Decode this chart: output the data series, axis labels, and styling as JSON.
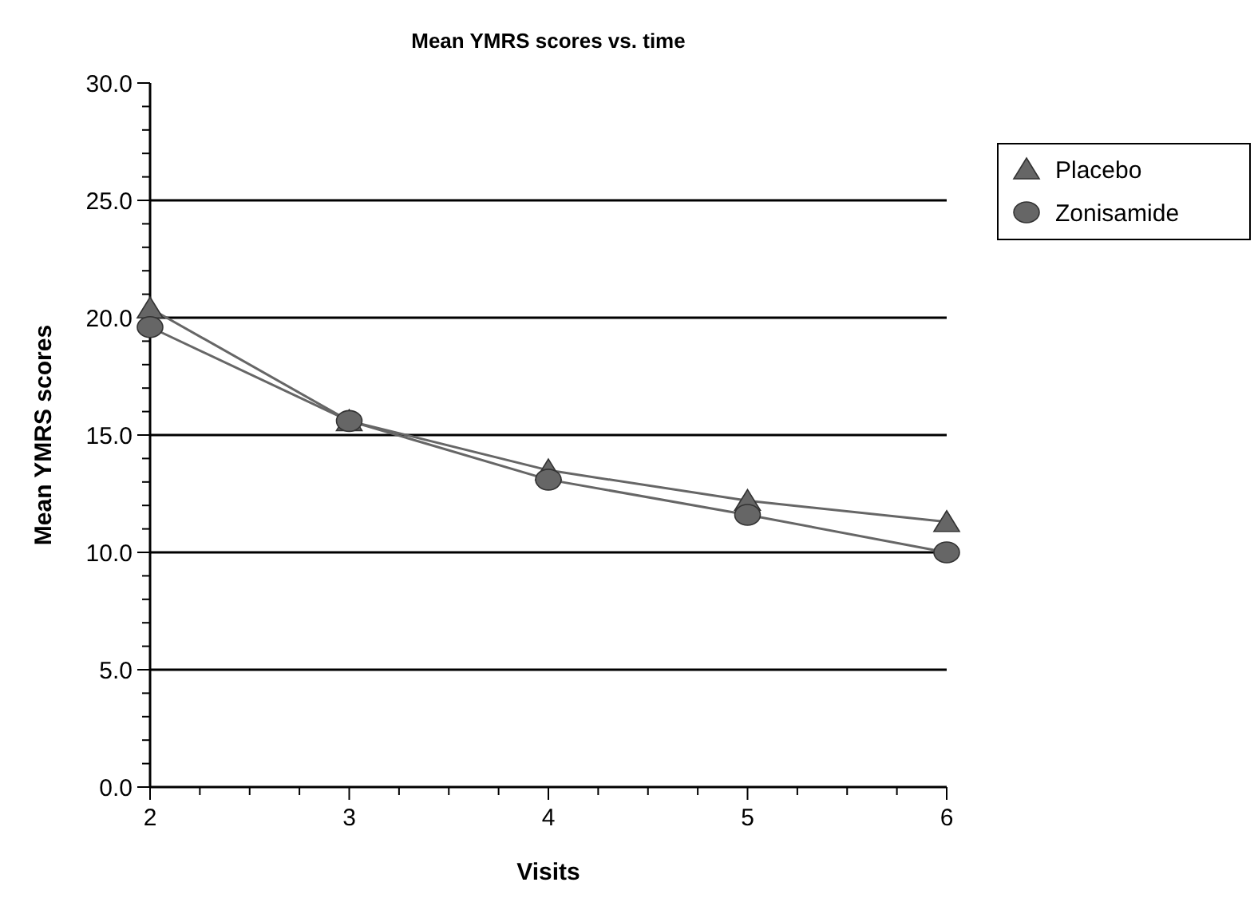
{
  "chart_data": {
    "type": "line",
    "title": "Mean YMRS scores vs. time",
    "xlabel": "Visits",
    "ylabel": "Mean YMRS scores",
    "x": [
      2,
      3,
      4,
      5,
      6
    ],
    "series": [
      {
        "name": "Placebo",
        "color": "#666666",
        "marker": "triangle",
        "values": [
          20.4,
          15.6,
          13.5,
          12.2,
          11.3
        ]
      },
      {
        "name": "Zonisamide",
        "color": "#666666",
        "marker": "circle",
        "values": [
          19.6,
          15.6,
          13.1,
          11.6,
          10.0
        ]
      }
    ],
    "xlim": [
      2,
      6
    ],
    "xticks": [
      2,
      {
        "value": 2.25,
        "label": null
      },
      {
        "value": 2.5,
        "label": null
      },
      {
        "value": 2.75,
        "label": null
      },
      3,
      {
        "value": 3.25,
        "label": null
      },
      {
        "value": 3.5,
        "label": null
      },
      {
        "value": 3.75,
        "label": null
      },
      4,
      {
        "value": 4.25,
        "label": null
      },
      {
        "value": 4.5,
        "label": null
      },
      {
        "value": 4.75,
        "label": null
      },
      5,
      {
        "value": 5.25,
        "label": null
      },
      {
        "value": 5.5,
        "label": null
      },
      {
        "value": 5.75,
        "label": null
      },
      6
    ],
    "ylim": [
      0,
      30
    ],
    "yticks": [
      {
        "value": 0,
        "label": "0.0"
      },
      {
        "value": 1,
        "label": null
      },
      {
        "value": 2,
        "label": null
      },
      {
        "value": 3,
        "label": null
      },
      {
        "value": 4,
        "label": null
      },
      {
        "value": 5,
        "label": "5.0"
      },
      {
        "value": 6,
        "label": null
      },
      {
        "value": 7,
        "label": null
      },
      {
        "value": 8,
        "label": null
      },
      {
        "value": 9,
        "label": null
      },
      {
        "value": 10,
        "label": "10.0"
      },
      {
        "value": 11,
        "label": null
      },
      {
        "value": 12,
        "label": null
      },
      {
        "value": 13,
        "label": null
      },
      {
        "value": 14,
        "label": null
      },
      {
        "value": 15,
        "label": "15.0"
      },
      {
        "value": 16,
        "label": null
      },
      {
        "value": 17,
        "label": null
      },
      {
        "value": 18,
        "label": null
      },
      {
        "value": 19,
        "label": null
      },
      {
        "value": 20,
        "label": "20.0"
      },
      {
        "value": 21,
        "label": null
      },
      {
        "value": 22,
        "label": null
      },
      {
        "value": 23,
        "label": null
      },
      {
        "value": 24,
        "label": null
      },
      {
        "value": 25,
        "label": "25.0"
      },
      {
        "value": 26,
        "label": null
      },
      {
        "value": 27,
        "label": null
      },
      {
        "value": 28,
        "label": null
      },
      {
        "value": 29,
        "label": null
      },
      {
        "value": 30,
        "label": "30.0"
      }
    ],
    "grid": "y",
    "legend": "right",
    "line_style": "solid"
  }
}
